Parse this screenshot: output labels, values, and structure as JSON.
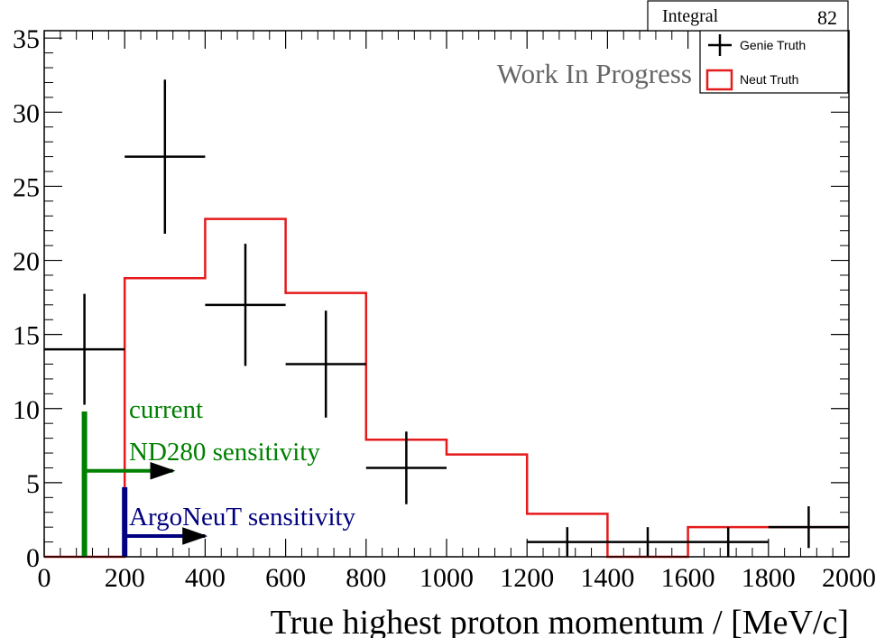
{
  "chart_data": {
    "type": "histogram",
    "xlabel": "True highest proton momentum / [MeV/c]",
    "ylabel": "",
    "xlim": [
      0,
      2000
    ],
    "ylim": [
      0,
      35.5
    ],
    "x_ticks": [
      0,
      200,
      400,
      600,
      800,
      1000,
      1200,
      1400,
      1600,
      1800,
      2000
    ],
    "y_ticks": [
      0,
      5,
      10,
      15,
      20,
      25,
      30,
      35
    ],
    "bin_edges": [
      0,
      200,
      400,
      600,
      800,
      1000,
      1200,
      1400,
      1600,
      1800,
      2000
    ],
    "series": [
      {
        "name": "Genie Truth",
        "style": "errorbar",
        "color": "#000000",
        "values": [
          14,
          27,
          17,
          13,
          6,
          0,
          1,
          1,
          1,
          2
        ],
        "errors": [
          3.74,
          5.2,
          4.12,
          3.61,
          2.45,
          0,
          1,
          1,
          1,
          1.41
        ]
      },
      {
        "name": "Neut Truth",
        "style": "step",
        "color": "#e41a1c",
        "values": [
          0,
          18.8,
          22.8,
          17.8,
          7.9,
          6.9,
          2.9,
          0,
          2,
          2
        ]
      }
    ],
    "stats_box": {
      "label": "Integral",
      "value": "82"
    },
    "watermark": "Work In Progress",
    "annotations": [
      {
        "line1": "current",
        "line2": "ND280 sensitivity",
        "x": 100,
        "bar_top": 9.8,
        "arrow_y": 5.8,
        "arrow_to": 320,
        "color": "#008000"
      },
      {
        "line1": "ArgoNeuT sensitivity",
        "line2": "",
        "x": 200,
        "bar_top": 4.7,
        "arrow_y": 1.4,
        "arrow_to": 400,
        "color": "#000080"
      }
    ]
  }
}
